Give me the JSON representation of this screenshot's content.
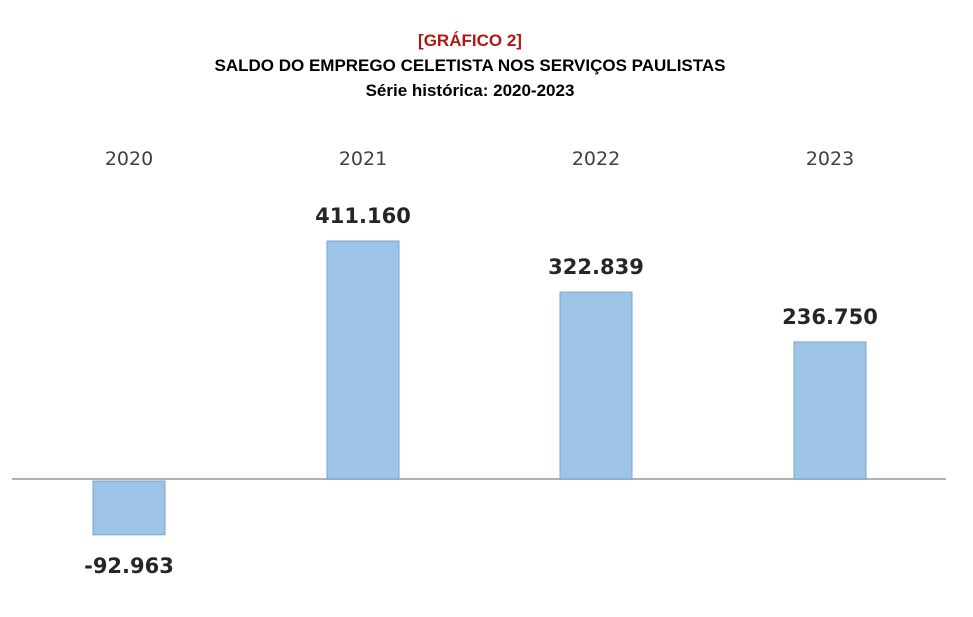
{
  "header": {
    "label": "[GRÁFICO 2]",
    "title": "SALDO DO EMPREGO CELETISTA NOS SERVIÇOS PAULISTAS",
    "subtitle": "Série histórica: 2020-2023"
  },
  "chart_data": {
    "type": "bar",
    "categories": [
      "2020",
      "2021",
      "2022",
      "2023"
    ],
    "values": [
      -92963,
      411160,
      322839,
      236750
    ],
    "value_labels": [
      "-92.963",
      "411.160",
      "322.839",
      "236.750"
    ],
    "title": "SALDO DO EMPREGO CELETISTA NOS SERVIÇOS PAULISTAS",
    "subtitle": "Série histórica: 2020-2023",
    "xlabel": "",
    "ylabel": "",
    "category_axis_position": "top",
    "grid": false,
    "legend": "none",
    "colors": {
      "bar_fill": "#9dc3e6",
      "bar_stroke": "#7aa6d0",
      "axis": "#b0b0b0"
    }
  }
}
